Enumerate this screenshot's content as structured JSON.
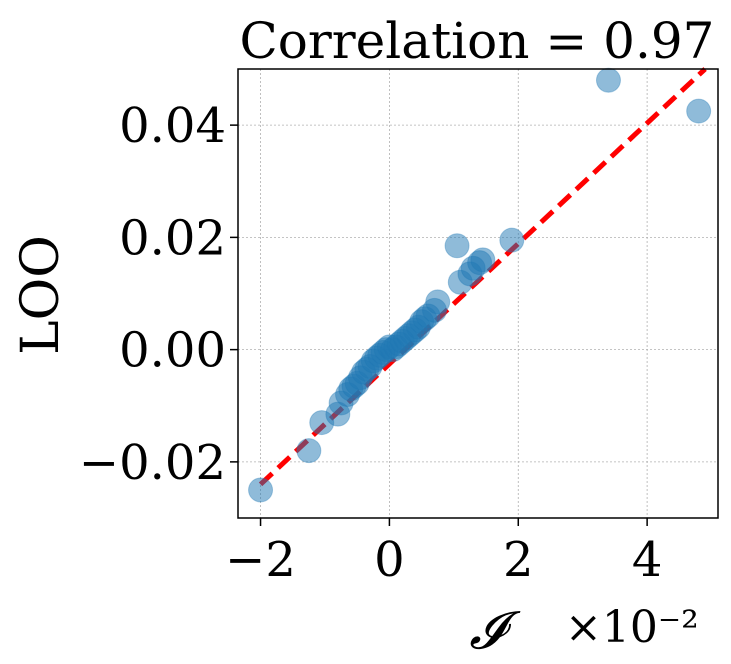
{
  "chart_data": {
    "type": "scatter",
    "title": "Correlation = 0.97",
    "xlabel": "𝓘",
    "x_offset_label": "×10⁻²",
    "ylabel": "LOO",
    "xlim": [
      -2.35,
      5.1
    ],
    "ylim": [
      -0.03,
      0.05
    ],
    "x_ticks": [
      -2,
      0,
      2,
      4
    ],
    "x_tick_labels": [
      "−2",
      "0",
      "2",
      "4"
    ],
    "y_ticks": [
      -0.02,
      0.0,
      0.02,
      0.04
    ],
    "y_tick_labels": [
      "−0.02",
      "0.00",
      "0.02",
      "0.04"
    ],
    "grid": true,
    "series": [
      {
        "name": "points",
        "x": [
          -2.0,
          -1.25,
          -1.05,
          -0.8,
          -0.75,
          -0.65,
          -0.6,
          -0.55,
          -0.5,
          -0.45,
          -0.4,
          -0.35,
          -0.3,
          -0.25,
          -0.2,
          -0.15,
          -0.1,
          -0.05,
          0.0,
          0.05,
          0.1,
          0.15,
          0.2,
          0.25,
          0.3,
          0.35,
          0.4,
          0.45,
          0.5,
          0.55,
          0.6,
          0.7,
          0.75,
          1.05,
          1.1,
          1.25,
          1.3,
          1.4,
          1.45,
          1.9,
          3.4,
          4.8
        ],
        "y": [
          -0.025,
          -0.018,
          -0.013,
          -0.0115,
          -0.0095,
          -0.008,
          -0.007,
          -0.0065,
          -0.006,
          -0.005,
          -0.004,
          -0.0035,
          -0.003,
          -0.002,
          -0.0015,
          -0.001,
          -0.0005,
          0.0,
          0.0005,
          0.0,
          0.0005,
          0.001,
          0.0015,
          0.002,
          0.0025,
          0.003,
          0.0035,
          0.004,
          0.005,
          0.0055,
          0.006,
          0.007,
          0.0085,
          0.0185,
          0.012,
          0.0135,
          0.0145,
          0.0155,
          0.016,
          0.0195,
          0.048,
          0.0425
        ]
      },
      {
        "name": "fit",
        "x": [
          -2.0,
          4.9
        ],
        "y": [
          -0.024,
          0.05
        ]
      }
    ]
  }
}
